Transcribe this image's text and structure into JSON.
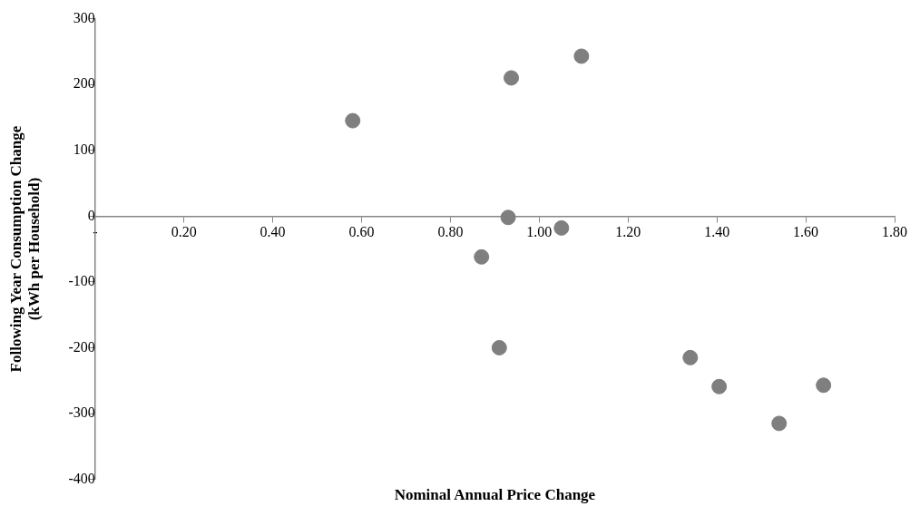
{
  "chart_data": {
    "type": "scatter",
    "xlabel": "Nominal Annual Price Change",
    "ylabel": "Following Year Consumption Change (kWh per Household)",
    "x": [
      0.58,
      0.937,
      1.095,
      0.93,
      1.05,
      0.87,
      0.91,
      1.34,
      1.405,
      1.54,
      1.64
    ],
    "values": [
      145,
      210,
      243,
      -2,
      -18,
      -62,
      -200,
      -215,
      -259,
      -315,
      -257
    ],
    "color": "#7f7f7f",
    "marker": "circle",
    "grid": false,
    "legend": false,
    "xlim": [
      0,
      1.8
    ],
    "xticks": [
      {
        "value": 0,
        "label": "-"
      },
      {
        "value": 0.2,
        "label": "0.20"
      },
      {
        "value": 0.4,
        "label": "0.40"
      },
      {
        "value": 0.6,
        "label": "0.60"
      },
      {
        "value": 0.8,
        "label": "0.80"
      },
      {
        "value": 1,
        "label": "1.00"
      },
      {
        "value": 1.2,
        "label": "1.20"
      },
      {
        "value": 1.4,
        "label": "1.40"
      },
      {
        "value": 1.6,
        "label": "1.60"
      },
      {
        "value": 1.8,
        "label": "1.80"
      }
    ],
    "ylim": [
      -400,
      300
    ],
    "yticks": [
      -400,
      -300,
      -200,
      -100,
      0,
      100,
      200,
      300
    ]
  }
}
